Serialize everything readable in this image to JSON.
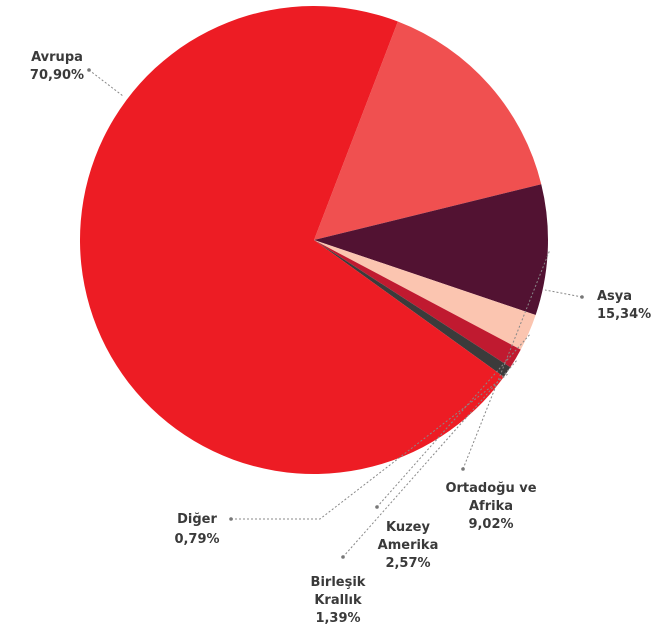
{
  "chart_data": {
    "type": "pie",
    "title": "",
    "start_angle_deg": 69,
    "direction": "clockwise",
    "categories": [
      "Asya",
      "Ortadoğu ve Afrika",
      "Kuzey Amerika",
      "Birleşik Krallık",
      "Diğer",
      "Avrupa"
    ],
    "values": [
      15.34,
      9.02,
      2.57,
      1.39,
      0.79,
      70.9
    ],
    "value_labels": [
      "15,34%",
      "9,02%",
      "2,57%",
      "1,39%",
      "0,79%",
      "70,90%"
    ],
    "label_lines": [
      [
        "Asya"
      ],
      [
        "Ortadoğu ve",
        "Afrika"
      ],
      [
        "Kuzey",
        "Amerika"
      ],
      [
        "Birleşik",
        "Krallık"
      ],
      [
        "Diğer"
      ],
      [
        "Avrupa"
      ]
    ],
    "colors": [
      "#f05050",
      "#521232",
      "#fbc5b0",
      "#c01a30",
      "#3b3b3b",
      "#ed1c24"
    ],
    "legend": "none"
  }
}
